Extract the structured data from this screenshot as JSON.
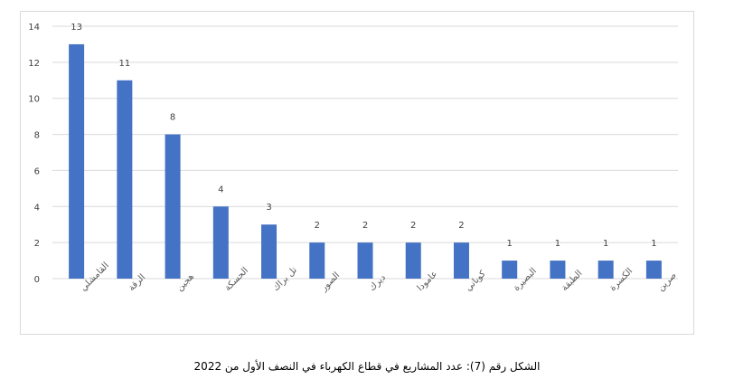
{
  "chart_data": {
    "type": "bar",
    "categories": [
      "القامشلي",
      "الرقة",
      "هجين",
      "الحسكة",
      "تل براك",
      "الصور",
      "ديرك",
      "عامودا",
      "كوباني",
      "البصيرة",
      "الطبقة",
      "الكسرة",
      "صرين"
    ],
    "values": [
      13,
      11,
      8,
      4,
      3,
      2,
      2,
      2,
      2,
      1,
      1,
      1,
      1
    ],
    "yticks": [
      0,
      2,
      4,
      6,
      8,
      10,
      12,
      14
    ],
    "ylim": [
      0,
      14
    ],
    "grid": true,
    "legend": "none",
    "bar_color": "#4472C4",
    "grid_color": "#d9d9d9"
  },
  "caption": "الشكل رقم (7): عدد المشاريع في قطاع الكهرباء في النصف الأول من 2022"
}
